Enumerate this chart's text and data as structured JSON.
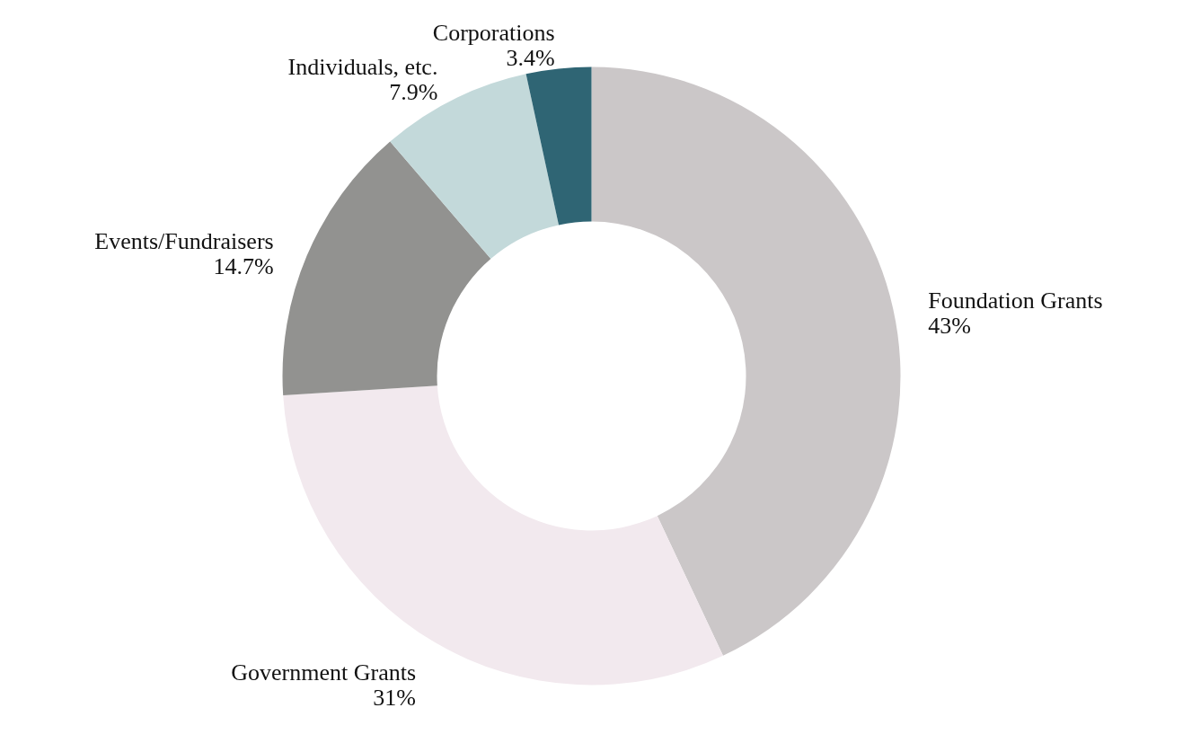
{
  "chart_data": {
    "type": "donut",
    "categories": [
      "Foundation Grants",
      "Government Grants",
      "Events/Fundraisers",
      "Individuals, etc.",
      "Corporations"
    ],
    "values": [
      43,
      31,
      14.7,
      7.9,
      3.4
    ],
    "value_labels": [
      "43%",
      "31%",
      "14.7%",
      "7.9%",
      "3.4%"
    ],
    "colors": [
      "#cbc7c8",
      "#f2e9ee",
      "#929290",
      "#c3d9da",
      "#2f6574"
    ]
  }
}
